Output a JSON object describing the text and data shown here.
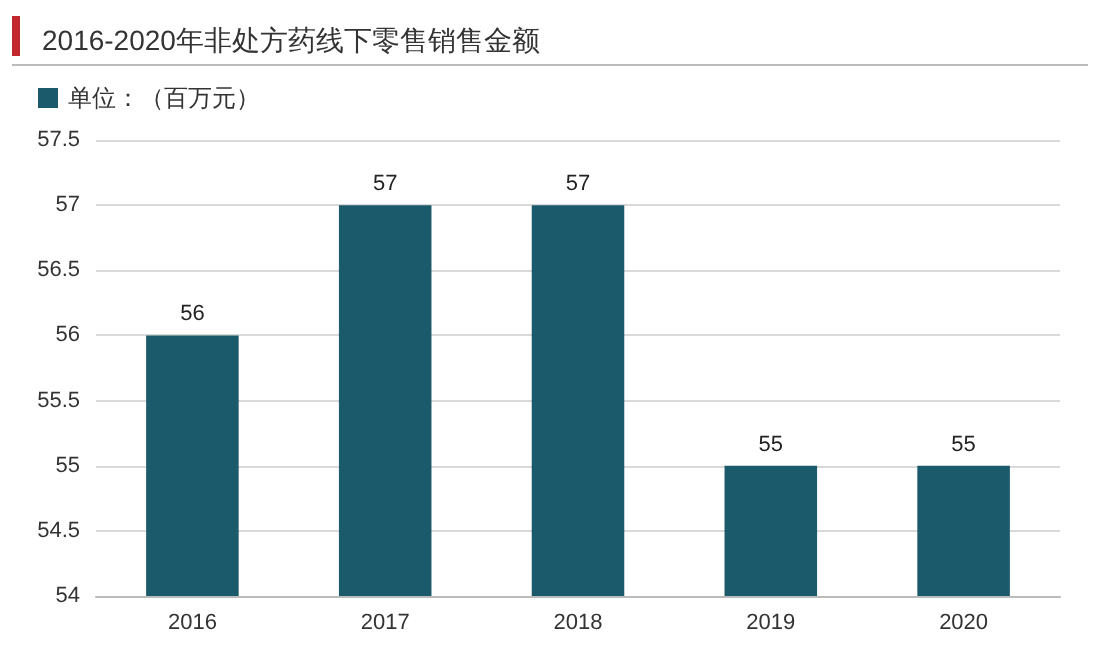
{
  "chart_data": {
    "type": "bar",
    "title": "2016-2020年非处方药线下零售销售金额",
    "categories": [
      "2016",
      "2017",
      "2018",
      "2019",
      "2020"
    ],
    "series": [
      {
        "name": "单位：（百万元）",
        "color": "#1b5a6b",
        "values": [
          56,
          57,
          57,
          55,
          55
        ]
      }
    ],
    "ylim": [
      54,
      57.5
    ],
    "yticks": [
      54,
      54.5,
      55,
      55.5,
      56,
      56.5,
      57,
      57.5
    ],
    "grid": "y",
    "legend": "top left",
    "data_labels": true
  }
}
